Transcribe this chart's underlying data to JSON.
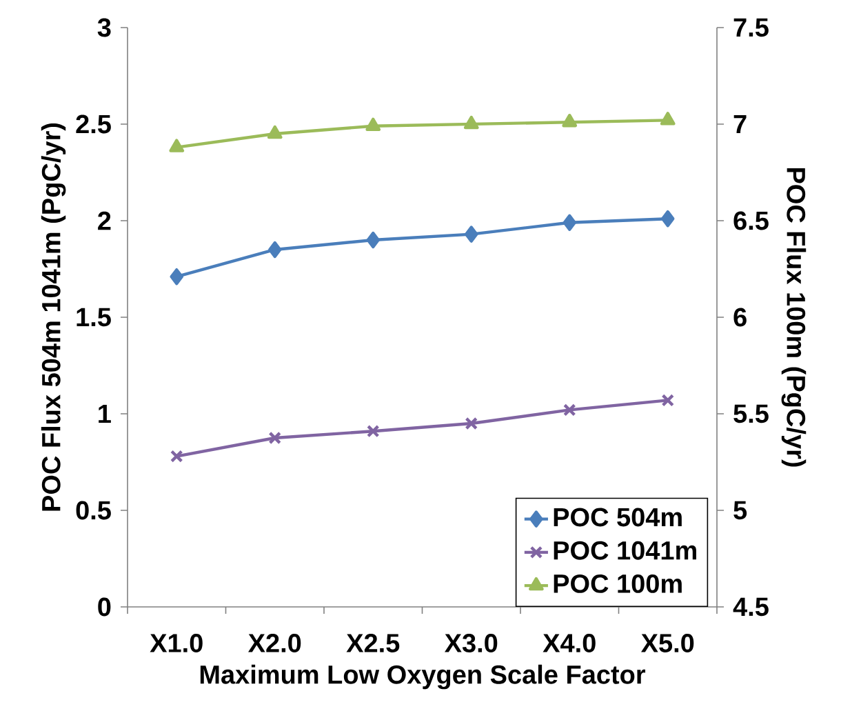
{
  "chart_data": {
    "type": "line",
    "categories": [
      "X1.0",
      "X2.0",
      "X2.5",
      "X3.0",
      "X4.0",
      "X5.0"
    ],
    "xlabel": "Maximum Low Oxygen Scale Factor",
    "ylabel": "POC Flux 504m 1041m  (PgC/yr)",
    "y2label": "POC Flux 100m (PgC/yr)",
    "ylim": [
      0,
      3
    ],
    "yticks": [
      0,
      0.5,
      1,
      1.5,
      2,
      2.5,
      3
    ],
    "y2lim": [
      4.5,
      7.5
    ],
    "y2ticks": [
      4.5,
      5,
      5.5,
      6,
      6.5,
      7,
      7.5
    ],
    "legend": "bottom right",
    "line_style": "solid",
    "series": [
      {
        "name": "POC 504m",
        "color": "#4a7ebb",
        "marker": "diamond",
        "values": [
          1.71,
          1.85,
          1.9,
          1.93,
          1.99,
          2.01
        ]
      },
      {
        "name": "POC 1041m",
        "color": "#8064a2",
        "marker": "cross",
        "values": [
          0.78,
          0.875,
          0.91,
          0.95,
          1.02,
          1.07
        ]
      },
      {
        "name": "POC 100m",
        "color": "#9bbb59",
        "marker": "triangle",
        "axis": "y2",
        "values": [
          6.88,
          6.95,
          6.99,
          7.0,
          7.01,
          7.02
        ]
      }
    ]
  }
}
